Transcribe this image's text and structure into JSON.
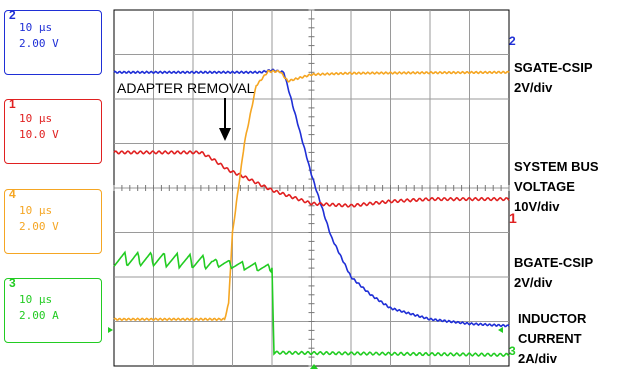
{
  "channels": [
    {
      "id": "2",
      "timebase": "10 μs",
      "scale": "2.00 V",
      "color": "#1f2fd6"
    },
    {
      "id": "1",
      "timebase": "10 μs",
      "scale": "10.0 V",
      "color": "#e02020"
    },
    {
      "id": "4",
      "timebase": "10 μs",
      "scale": "2.00 V",
      "color": "#f5a623"
    },
    {
      "id": "3",
      "timebase": "10 μs",
      "scale": "2.00 A",
      "color": "#22cc22"
    }
  ],
  "labels": {
    "sgate_line1": "SGATE-CSIP",
    "sgate_line2": "2V/div",
    "sysbus_line1": "SYSTEM BUS",
    "sysbus_line2": "VOLTAGE",
    "sysbus_line3": "10V/div",
    "bgate_line1": "BGATE-CSIP",
    "bgate_line2": "2V/div",
    "ind_line1": "INDUCTOR",
    "ind_line2": "CURRENT",
    "ind_line3": "2A/div"
  },
  "annotation": "ADAPTER REMOVAL",
  "markers": {
    "ch2": "2",
    "ch1": "1",
    "ch3": "3"
  },
  "chart_data": {
    "type": "line",
    "x_divisions": 10,
    "y_divisions": 8,
    "grid": true,
    "series": [
      {
        "channel": "2",
        "color": "#1f2fd6",
        "x": [
          0,
          3.7,
          4.0,
          4.3,
          5.0,
          5.5,
          6.0,
          6.5,
          7.0,
          8.0,
          9.0,
          10.0
        ],
        "y": [
          6.6,
          6.6,
          6.65,
          6.6,
          4.3,
          2.9,
          2.0,
          1.6,
          1.3,
          1.05,
          0.95,
          0.9
        ]
      },
      {
        "channel": "1",
        "color": "#e02020",
        "x": [
          0,
          2.2,
          2.5,
          2.9,
          3.3,
          4.0,
          5.0,
          6.0,
          7.0,
          8.0,
          10.0
        ],
        "y": [
          4.8,
          4.8,
          4.65,
          4.4,
          4.25,
          3.95,
          3.65,
          3.6,
          3.7,
          3.75,
          3.75
        ],
        "ripple": true
      },
      {
        "channel": "4",
        "color": "#f5a623",
        "x": [
          0,
          2.8,
          2.9,
          3.0,
          3.3,
          3.6,
          3.9,
          4.2,
          4.4,
          5.0,
          6.0,
          10.0
        ],
        "y": [
          1.05,
          1.05,
          1.4,
          3.0,
          5.0,
          6.3,
          6.62,
          6.62,
          6.4,
          6.55,
          6.58,
          6.6
        ]
      },
      {
        "channel": "3",
        "color": "#22cc22",
        "x": [
          0,
          1.0,
          2.0,
          2.8,
          3.3,
          3.9,
          4.0,
          4.05,
          10.0
        ],
        "y": [
          2.4,
          2.4,
          2.35,
          2.3,
          2.25,
          2.2,
          2.2,
          0.3,
          0.25
        ],
        "ripple": true
      }
    ]
  }
}
